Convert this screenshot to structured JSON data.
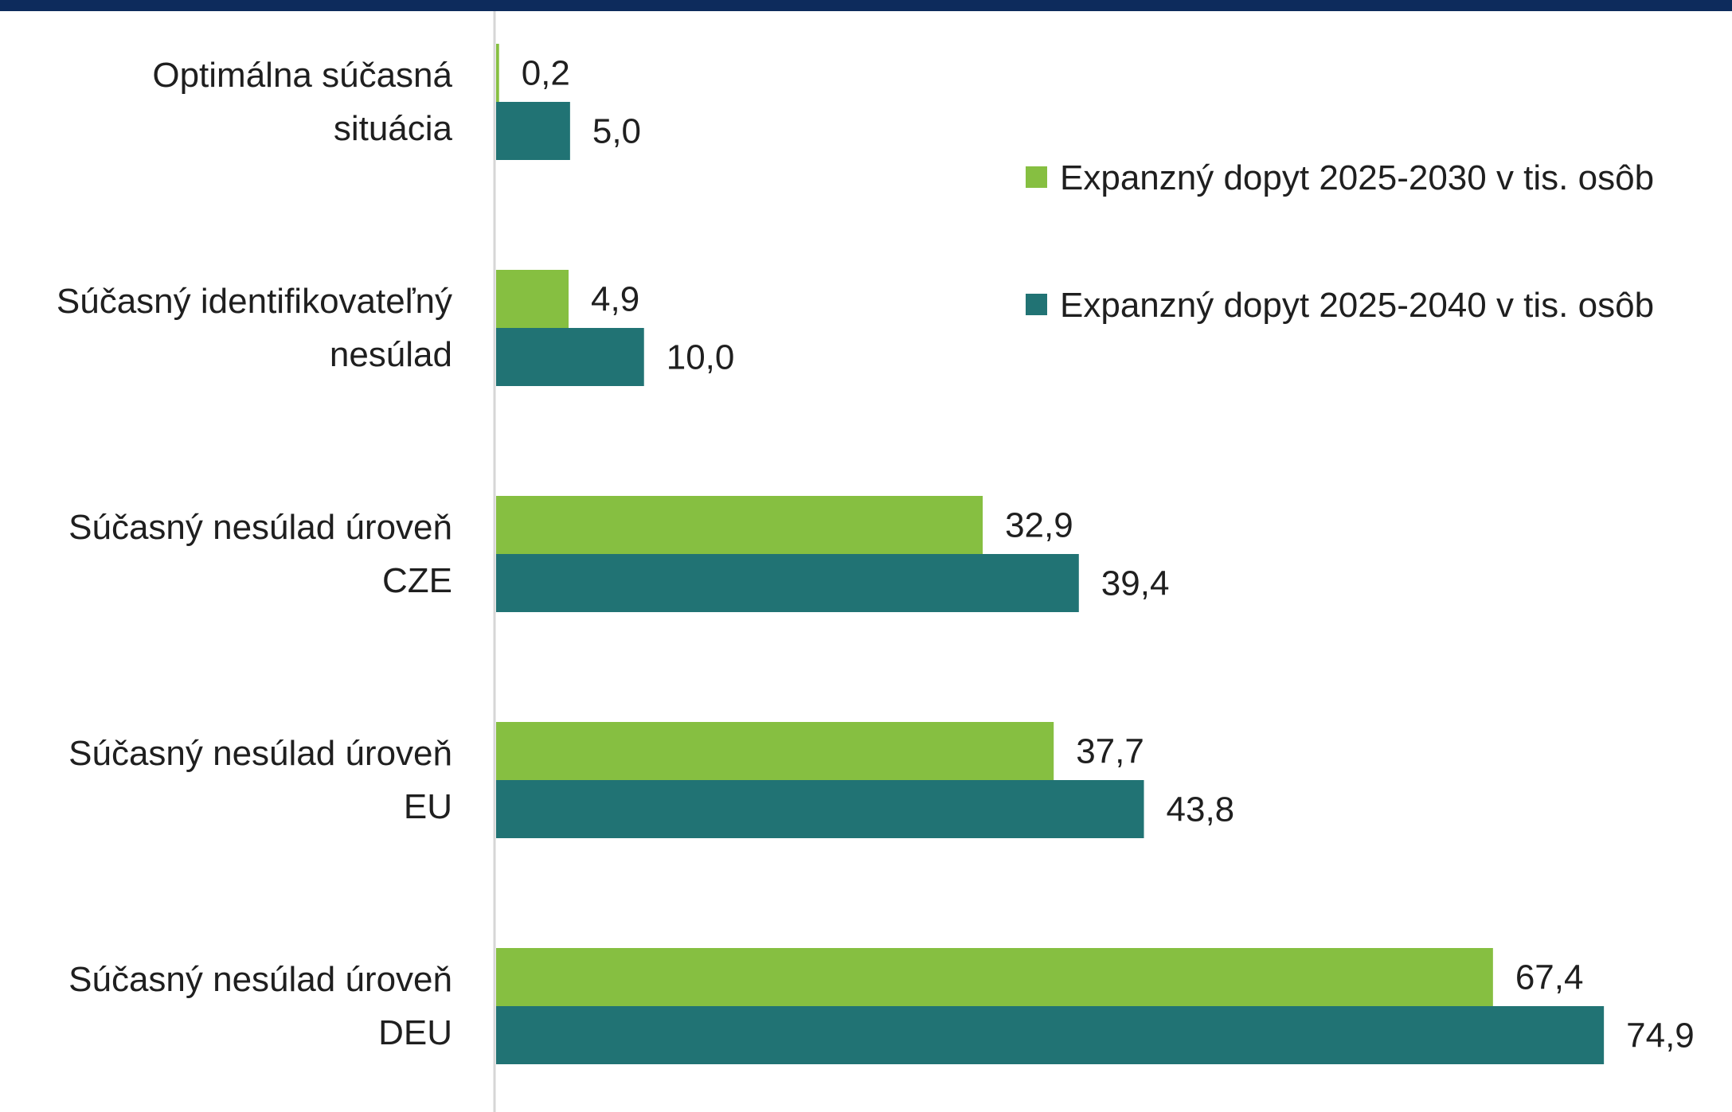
{
  "chart_data": {
    "type": "bar",
    "orientation": "horizontal",
    "categories": [
      [
        "Optimálna súčasná",
        "situácia"
      ],
      [
        "Súčasný identifikovateľný",
        "nesúlad"
      ],
      [
        "Súčasný nesúlad úroveň",
        "CZE"
      ],
      [
        "Súčasný nesúlad úroveň",
        "EU"
      ],
      [
        "Súčasný nesúlad úroveň",
        "DEU"
      ]
    ],
    "series": [
      {
        "name": "Expanzný dopyt 2025-2030 v tis. osôb",
        "color": "#86bf41",
        "values": [
          0.2,
          4.9,
          32.9,
          37.7,
          67.4
        ],
        "labels": [
          "0,2",
          "4,9",
          "32,9",
          "37,7",
          "67,4"
        ]
      },
      {
        "name": "Expanzný dopyt 2025-2040 v tis. osôb",
        "color": "#217374",
        "values": [
          5.0,
          10.0,
          39.4,
          43.8,
          74.9
        ],
        "labels": [
          "5,0",
          "10,0",
          "39,4",
          "43,8",
          "74,9"
        ]
      }
    ],
    "xlim": [
      0,
      80
    ],
    "grid": false,
    "legend_position": "top-right",
    "header_bar_color": "#0d2b5c"
  }
}
